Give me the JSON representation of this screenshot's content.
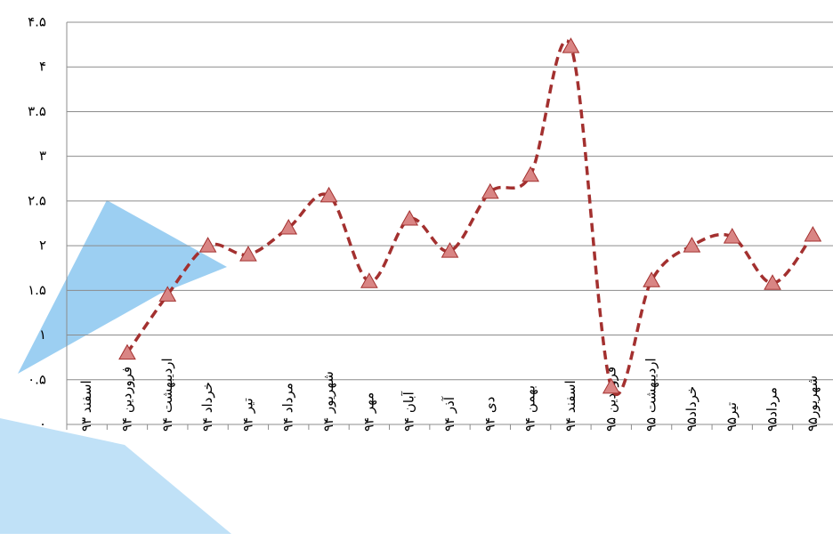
{
  "chart_data": {
    "type": "line",
    "categories": [
      "اسفند ۹۳",
      "فروردین ۹۴",
      "اردیبهشت ۹۴",
      "خرداد ۹۴",
      "تیر ۹۴",
      "مرداد ۹۴",
      "شهریور ۹۴",
      "مهر ۹۴",
      "آبان ۹۴",
      "آذر ۹۴",
      "دی ۹۴",
      "بهمن ۹۴",
      "اسفند ۹۴",
      "فروردین ۹۵",
      "اردیبهشت ۹۵",
      "خرداد۹۵",
      "تیر۹۵",
      "مرداد۹۵",
      "شهریور۹۵"
    ],
    "values": [
      null,
      0.8,
      1.45,
      2.0,
      1.9,
      2.2,
      2.56,
      1.6,
      2.3,
      1.94,
      2.6,
      2.79,
      4.23,
      0.42,
      1.61,
      2.0,
      2.1,
      1.58,
      2.12
    ],
    "color": "#a3302f",
    "marker_color": "#d98584",
    "ylim": [
      0,
      4.5
    ],
    "yticks": [
      {
        "value": 0,
        "label": "۰"
      },
      {
        "value": 0.5,
        "label": "۰.۵"
      },
      {
        "value": 1,
        "label": "۱"
      },
      {
        "value": 1.5,
        "label": "۱.۵"
      },
      {
        "value": 2,
        "label": "۲"
      },
      {
        "value": 2.5,
        "label": "۲.۵"
      },
      {
        "value": 3,
        "label": "۳"
      },
      {
        "value": 3.5,
        "label": "۳.۵"
      },
      {
        "value": 4,
        "label": "۴"
      },
      {
        "value": 4.5,
        "label": "۴.۵"
      }
    ],
    "grid": true
  }
}
